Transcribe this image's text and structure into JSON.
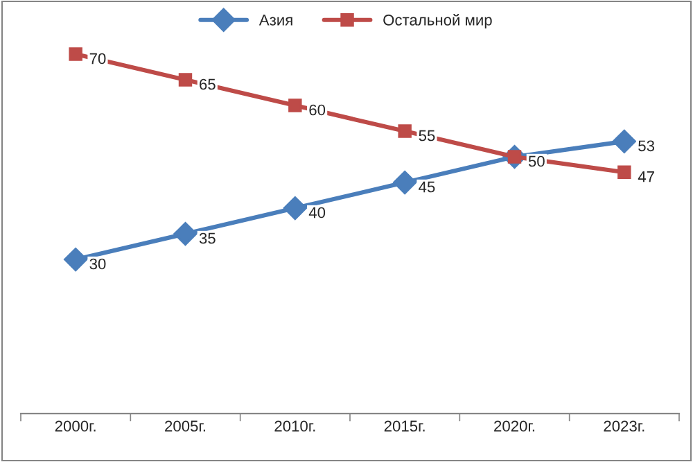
{
  "chart_data": {
    "type": "line",
    "categories": [
      "2000г.",
      "2005г.",
      "2010г.",
      "2015г.",
      "2020г.",
      "2023г."
    ],
    "series": [
      {
        "name": "Азия",
        "color": "#4a7ebb",
        "marker": "diamond",
        "values": [
          30,
          35,
          40,
          45,
          50,
          53
        ],
        "value_labels": [
          "30",
          "35",
          "40",
          "45",
          null,
          "53"
        ]
      },
      {
        "name": "Остальной мир",
        "color": "#be4b48",
        "marker": "square",
        "values": [
          70,
          65,
          60,
          55,
          50,
          47
        ],
        "value_labels": [
          "70",
          "65",
          "60",
          "55",
          "50",
          "47"
        ]
      }
    ],
    "legend": "top",
    "grid": false,
    "line_style": "solid",
    "tick_labels": "x"
  }
}
